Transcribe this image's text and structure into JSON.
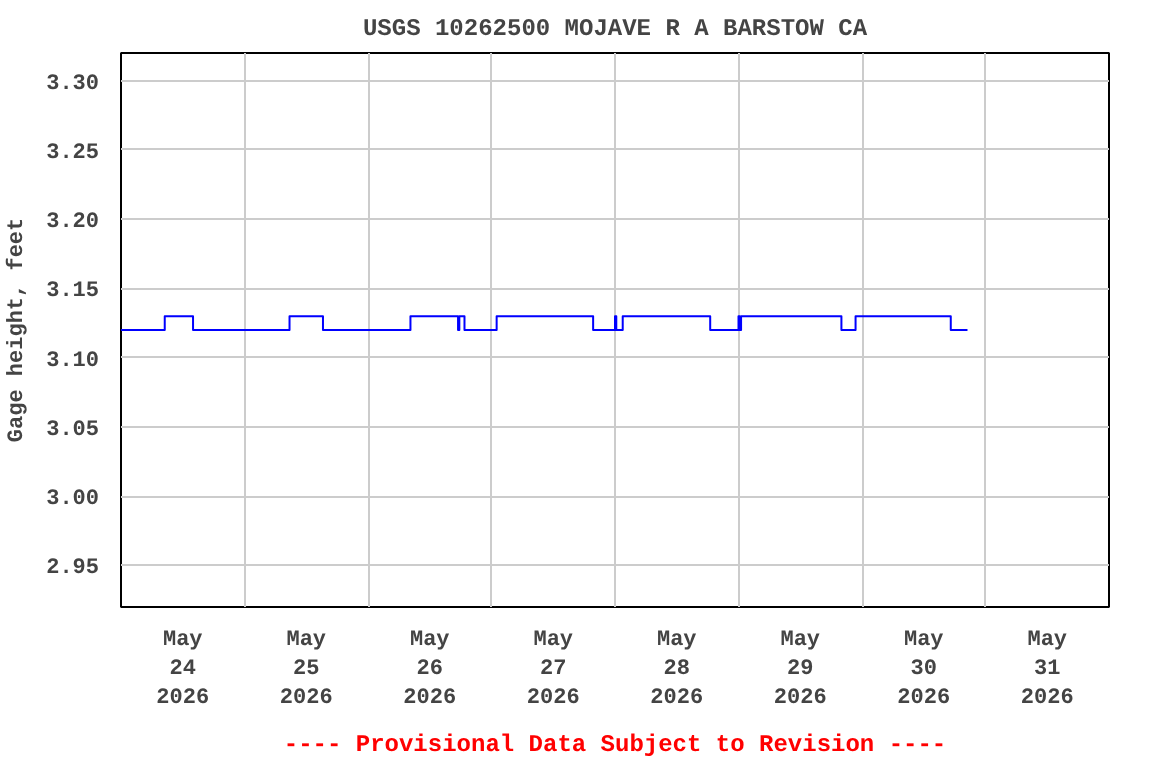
{
  "chart_data": {
    "type": "step",
    "title": "USGS 10262500 MOJAVE R A BARSTOW CA",
    "ylabel": "Gage height, feet",
    "annotations": [
      "---- Provisional Data Subject to Revision ----"
    ],
    "x": [
      "2026-05-24T00:00",
      "2026-05-24T08:30",
      "2026-05-24T14:00",
      "2026-05-25T08:45",
      "2026-05-25T15:15",
      "2026-05-26T08:15",
      "2026-05-26T17:30",
      "2026-05-26T17:45",
      "2026-05-26T18:45",
      "2026-05-27T01:00",
      "2026-05-27T19:45",
      "2026-05-28T00:00",
      "2026-05-28T00:15",
      "2026-05-28T01:30",
      "2026-05-28T18:30",
      "2026-05-29T00:00",
      "2026-05-29T00:15",
      "2026-05-29T00:30",
      "2026-05-29T20:00",
      "2026-05-29T22:45",
      "2026-05-30T17:15",
      "2026-05-30T20:30"
    ],
    "series": [
      {
        "color": "#0000ff",
        "values": [
          3.12,
          3.13,
          3.12,
          3.13,
          3.12,
          3.13,
          3.12,
          3.13,
          3.12,
          3.13,
          3.12,
          3.13,
          3.12,
          3.13,
          3.12,
          3.13,
          3.12,
          3.13,
          3.12,
          3.13,
          3.12,
          3.12
        ]
      }
    ],
    "xlim": [
      "2026-05-24T00:00",
      "2026-06-01T00:00"
    ],
    "xticks": [
      {
        "value": "2026-05-24T12:00",
        "label": "May\n24\n2026"
      },
      {
        "value": "2026-05-25T12:00",
        "label": "May\n25\n2026"
      },
      {
        "value": "2026-05-26T12:00",
        "label": "May\n26\n2026"
      },
      {
        "value": "2026-05-27T12:00",
        "label": "May\n27\n2026"
      },
      {
        "value": "2026-05-28T12:00",
        "label": "May\n28\n2026"
      },
      {
        "value": "2026-05-29T12:00",
        "label": "May\n29\n2026"
      },
      {
        "value": "2026-05-30T12:00",
        "label": "May\n30\n2026"
      },
      {
        "value": "2026-05-31T12:00",
        "label": "May\n31\n2026"
      }
    ],
    "ylim": [
      2.92,
      3.32
    ],
    "yticks": [
      {
        "value": 2.95,
        "label": "2.95"
      },
      {
        "value": 3.0,
        "label": "3.00"
      },
      {
        "value": 3.05,
        "label": "3.05"
      },
      {
        "value": 3.1,
        "label": "3.10"
      },
      {
        "value": 3.15,
        "label": "3.15"
      },
      {
        "value": 3.2,
        "label": "3.20"
      },
      {
        "value": 3.25,
        "label": "3.25"
      },
      {
        "value": 3.3,
        "label": "3.30"
      }
    ],
    "grid": true
  }
}
